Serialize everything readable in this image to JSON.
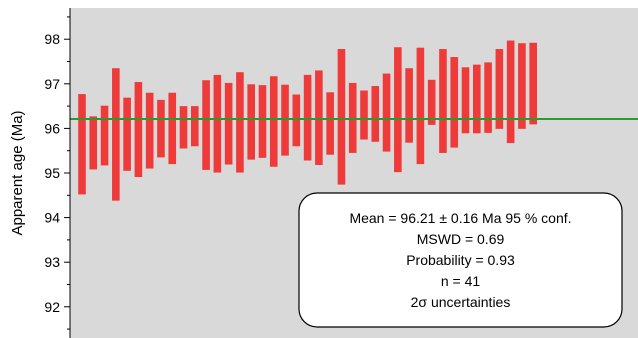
{
  "chart_data": {
    "type": "bar",
    "ylabel": "Apparent age (Ma)",
    "ylim": [
      91.3,
      98.7
    ],
    "yticks": [
      92,
      93,
      94,
      95,
      96,
      97,
      98
    ],
    "grid": false,
    "mean_line": 96.21,
    "series": [
      {
        "low": [
          94.52,
          95.08,
          95.17,
          94.38,
          95.05,
          94.91,
          95.1,
          95.35,
          95.2,
          95.55,
          95.6,
          95.07,
          95.01,
          95.19,
          95.01,
          95.3,
          95.34,
          95.14,
          95.39,
          95.6,
          95.28,
          95.18,
          95.41,
          94.74,
          95.45,
          95.75,
          95.7,
          95.48,
          95.02,
          95.68,
          95.2,
          96.08,
          95.45,
          95.57,
          95.89,
          95.89,
          95.9,
          95.99,
          95.67,
          95.99,
          96.09
        ],
        "high": [
          96.77,
          96.27,
          96.51,
          97.35,
          96.69,
          97.04,
          96.8,
          96.64,
          96.8,
          96.5,
          96.5,
          97.08,
          97.2,
          97.02,
          97.26,
          96.99,
          96.97,
          97.17,
          96.98,
          96.76,
          97.2,
          97.3,
          96.81,
          97.78,
          97.02,
          96.85,
          96.95,
          97.23,
          97.82,
          97.35,
          97.81,
          97.09,
          97.78,
          97.6,
          97.37,
          97.43,
          97.48,
          97.78,
          97.97,
          97.91,
          97.92
        ]
      }
    ],
    "annotation": {
      "lines": [
        "Mean = 96.21 ± 0.16 Ma  95 % conf.",
        "MSWD = 0.69",
        "Probability = 0.93",
        "n = 41",
        "2σ uncertainties"
      ],
      "placement": "bottom-right"
    },
    "colors": {
      "background": "#d9d9d9",
      "bar": "#ef3a3a",
      "mean_line": "#2a9a2a"
    }
  }
}
